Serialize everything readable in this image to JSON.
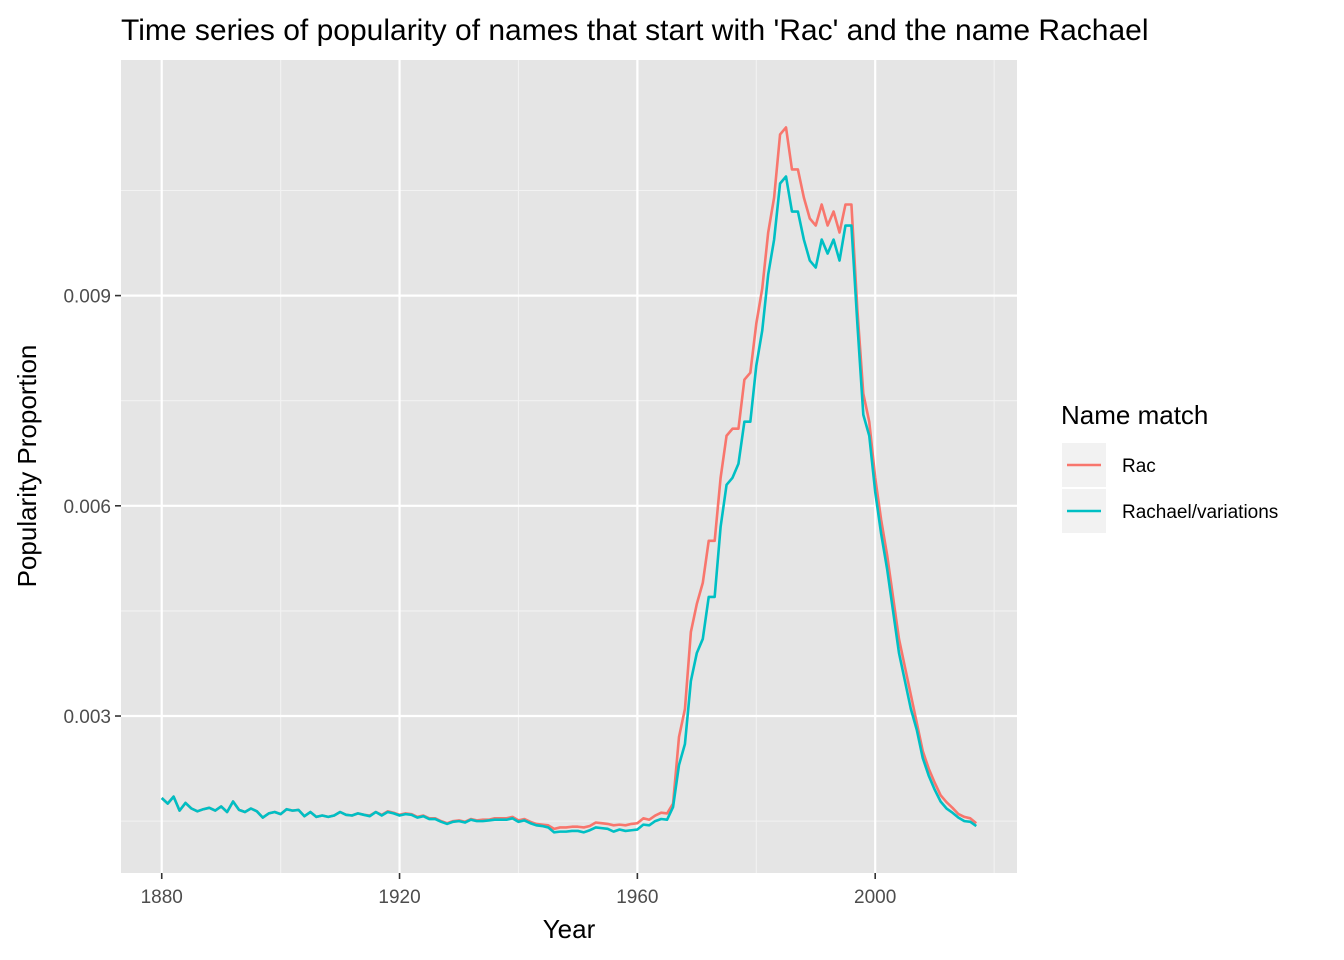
{
  "chart_data": {
    "type": "line",
    "title": "Time series of popularity of names that start with 'Rac' and the name Rachael",
    "xlabel": "Year",
    "ylabel": "Popularity Proportion",
    "xlim": [
      1873.15,
      2023.85
    ],
    "ylim": [
      0.0007596,
      0.0123624
    ],
    "x_ticks": [
      1880,
      1920,
      1960,
      2000
    ],
    "x_tick_labels": [
      "1880",
      "1920",
      "1960",
      "2000"
    ],
    "x_minor_ticks": [
      1900,
      1940,
      1980,
      2020
    ],
    "y_ticks": [
      0.003,
      0.006,
      0.009
    ],
    "y_tick_labels": [
      "0.003",
      "0.006",
      "0.009"
    ],
    "y_minor_ticks": [
      0.0015,
      0.0045,
      0.0075,
      0.0105
    ],
    "grid": true,
    "panel_background": "#e5e5e5",
    "legend": {
      "title": "Name match",
      "position": "right"
    },
    "series": [
      {
        "name": "Rac",
        "color": "#f8766d",
        "points": [
          [
            1880,
            0.00183
          ],
          [
            1881,
            0.00175
          ],
          [
            1882,
            0.00185
          ],
          [
            1883,
            0.00165
          ],
          [
            1884,
            0.00176
          ],
          [
            1885,
            0.00168
          ],
          [
            1886,
            0.00164
          ],
          [
            1887,
            0.00167
          ],
          [
            1888,
            0.00169
          ],
          [
            1889,
            0.00165
          ],
          [
            1890,
            0.00171
          ],
          [
            1891,
            0.00163
          ],
          [
            1892,
            0.00178
          ],
          [
            1893,
            0.00166
          ],
          [
            1894,
            0.00163
          ],
          [
            1895,
            0.00168
          ],
          [
            1896,
            0.00164
          ],
          [
            1897,
            0.00155
          ],
          [
            1898,
            0.00161
          ],
          [
            1899,
            0.00163
          ],
          [
            1900,
            0.0016
          ],
          [
            1901,
            0.00167
          ],
          [
            1902,
            0.00165
          ],
          [
            1903,
            0.00166
          ],
          [
            1904,
            0.00157
          ],
          [
            1905,
            0.00163
          ],
          [
            1906,
            0.00156
          ],
          [
            1907,
            0.00158
          ],
          [
            1908,
            0.00156
          ],
          [
            1909,
            0.00158
          ],
          [
            1910,
            0.00163
          ],
          [
            1911,
            0.00159
          ],
          [
            1912,
            0.00158
          ],
          [
            1913,
            0.00161
          ],
          [
            1914,
            0.00159
          ],
          [
            1915,
            0.00158
          ],
          [
            1916,
            0.00163
          ],
          [
            1917,
            0.00159
          ],
          [
            1918,
            0.00164
          ],
          [
            1919,
            0.00162
          ],
          [
            1920,
            0.00159
          ],
          [
            1921,
            0.00161
          ],
          [
            1922,
            0.0016
          ],
          [
            1923,
            0.00156
          ],
          [
            1924,
            0.00158
          ],
          [
            1925,
            0.00154
          ],
          [
            1926,
            0.00154
          ],
          [
            1927,
            0.0015
          ],
          [
            1928,
            0.00147
          ],
          [
            1929,
            0.0015
          ],
          [
            1930,
            0.00151
          ],
          [
            1931,
            0.00149
          ],
          [
            1932,
            0.00153
          ],
          [
            1933,
            0.00151
          ],
          [
            1934,
            0.00152
          ],
          [
            1935,
            0.00152
          ],
          [
            1936,
            0.00154
          ],
          [
            1937,
            0.00154
          ],
          [
            1938,
            0.00154
          ],
          [
            1939,
            0.00156
          ],
          [
            1940,
            0.00151
          ],
          [
            1941,
            0.00153
          ],
          [
            1942,
            0.00149
          ],
          [
            1943,
            0.00146
          ],
          [
            1944,
            0.00145
          ],
          [
            1945,
            0.00144
          ],
          [
            1946,
            0.00139
          ],
          [
            1947,
            0.00141
          ],
          [
            1948,
            0.00141
          ],
          [
            1949,
            0.00142
          ],
          [
            1950,
            0.00142
          ],
          [
            1951,
            0.00141
          ],
          [
            1952,
            0.00143
          ],
          [
            1953,
            0.00148
          ],
          [
            1954,
            0.00147
          ],
          [
            1955,
            0.00146
          ],
          [
            1956,
            0.00144
          ],
          [
            1957,
            0.00145
          ],
          [
            1958,
            0.00144
          ],
          [
            1959,
            0.00146
          ],
          [
            1960,
            0.00147
          ],
          [
            1961,
            0.00154
          ],
          [
            1962,
            0.00152
          ],
          [
            1963,
            0.00158
          ],
          [
            1964,
            0.00162
          ],
          [
            1965,
            0.00161
          ],
          [
            1966,
            0.00175
          ],
          [
            1967,
            0.0027
          ],
          [
            1968,
            0.0031
          ],
          [
            1969,
            0.0042
          ],
          [
            1970,
            0.0046
          ],
          [
            1971,
            0.0049
          ],
          [
            1972,
            0.0055
          ],
          [
            1973,
            0.0055
          ],
          [
            1974,
            0.0064
          ],
          [
            1975,
            0.007
          ],
          [
            1976,
            0.0071
          ],
          [
            1977,
            0.0071
          ],
          [
            1978,
            0.0078
          ],
          [
            1979,
            0.0079
          ],
          [
            1980,
            0.0086
          ],
          [
            1981,
            0.0091
          ],
          [
            1982,
            0.0099
          ],
          [
            1983,
            0.0104
          ],
          [
            1984,
            0.0113
          ],
          [
            1985,
            0.0114
          ],
          [
            1986,
            0.0108
          ],
          [
            1987,
            0.0108
          ],
          [
            1988,
            0.0104
          ],
          [
            1989,
            0.0101
          ],
          [
            1990,
            0.01
          ],
          [
            1991,
            0.0103
          ],
          [
            1992,
            0.01
          ],
          [
            1993,
            0.0102
          ],
          [
            1994,
            0.0099
          ],
          [
            1995,
            0.0103
          ],
          [
            1996,
            0.0103
          ],
          [
            1997,
            0.0088
          ],
          [
            1998,
            0.0076
          ],
          [
            1999,
            0.0072
          ],
          [
            2000,
            0.0064
          ],
          [
            2001,
            0.0058
          ],
          [
            2002,
            0.0053
          ],
          [
            2003,
            0.0047
          ],
          [
            2004,
            0.0041
          ],
          [
            2005,
            0.0037
          ],
          [
            2006,
            0.0033
          ],
          [
            2007,
            0.0029
          ],
          [
            2008,
            0.0025
          ],
          [
            2009,
            0.00225
          ],
          [
            2010,
            0.00205
          ],
          [
            2011,
            0.00187
          ],
          [
            2012,
            0.00177
          ],
          [
            2013,
            0.00169
          ],
          [
            2014,
            0.0016
          ],
          [
            2015,
            0.00156
          ],
          [
            2016,
            0.00154
          ],
          [
            2017,
            0.00147
          ]
        ]
      },
      {
        "name": "Rachael/variations",
        "color": "#00bfc4",
        "points": [
          [
            1880,
            0.00183
          ],
          [
            1881,
            0.00175
          ],
          [
            1882,
            0.00185
          ],
          [
            1883,
            0.00165
          ],
          [
            1884,
            0.00176
          ],
          [
            1885,
            0.00168
          ],
          [
            1886,
            0.00164
          ],
          [
            1887,
            0.00167
          ],
          [
            1888,
            0.00169
          ],
          [
            1889,
            0.00165
          ],
          [
            1890,
            0.00171
          ],
          [
            1891,
            0.00163
          ],
          [
            1892,
            0.00178
          ],
          [
            1893,
            0.00166
          ],
          [
            1894,
            0.00163
          ],
          [
            1895,
            0.00168
          ],
          [
            1896,
            0.00164
          ],
          [
            1897,
            0.00155
          ],
          [
            1898,
            0.00161
          ],
          [
            1899,
            0.00163
          ],
          [
            1900,
            0.0016
          ],
          [
            1901,
            0.00167
          ],
          [
            1902,
            0.00165
          ],
          [
            1903,
            0.00166
          ],
          [
            1904,
            0.00157
          ],
          [
            1905,
            0.00163
          ],
          [
            1906,
            0.00156
          ],
          [
            1907,
            0.00158
          ],
          [
            1908,
            0.00156
          ],
          [
            1909,
            0.00158
          ],
          [
            1910,
            0.00163
          ],
          [
            1911,
            0.00159
          ],
          [
            1912,
            0.00158
          ],
          [
            1913,
            0.00161
          ],
          [
            1914,
            0.00159
          ],
          [
            1915,
            0.00157
          ],
          [
            1916,
            0.00163
          ],
          [
            1917,
            0.00158
          ],
          [
            1918,
            0.00163
          ],
          [
            1919,
            0.00161
          ],
          [
            1920,
            0.00158
          ],
          [
            1921,
            0.0016
          ],
          [
            1922,
            0.00159
          ],
          [
            1923,
            0.00155
          ],
          [
            1924,
            0.00157
          ],
          [
            1925,
            0.00153
          ],
          [
            1926,
            0.00153
          ],
          [
            1927,
            0.00149
          ],
          [
            1928,
            0.00146
          ],
          [
            1929,
            0.00149
          ],
          [
            1930,
            0.0015
          ],
          [
            1931,
            0.00148
          ],
          [
            1932,
            0.00152
          ],
          [
            1933,
            0.0015
          ],
          [
            1934,
            0.0015
          ],
          [
            1935,
            0.00151
          ],
          [
            1936,
            0.00152
          ],
          [
            1937,
            0.00152
          ],
          [
            1938,
            0.00152
          ],
          [
            1939,
            0.00154
          ],
          [
            1940,
            0.00149
          ],
          [
            1941,
            0.00151
          ],
          [
            1942,
            0.00147
          ],
          [
            1943,
            0.00144
          ],
          [
            1944,
            0.00143
          ],
          [
            1945,
            0.00141
          ],
          [
            1946,
            0.00134
          ],
          [
            1947,
            0.00135
          ],
          [
            1948,
            0.00135
          ],
          [
            1949,
            0.00136
          ],
          [
            1950,
            0.00136
          ],
          [
            1951,
            0.00134
          ],
          [
            1952,
            0.00137
          ],
          [
            1953,
            0.00141
          ],
          [
            1954,
            0.0014
          ],
          [
            1955,
            0.00139
          ],
          [
            1956,
            0.00135
          ],
          [
            1957,
            0.00138
          ],
          [
            1958,
            0.00136
          ],
          [
            1959,
            0.00137
          ],
          [
            1960,
            0.00138
          ],
          [
            1961,
            0.00145
          ],
          [
            1962,
            0.00144
          ],
          [
            1963,
            0.0015
          ],
          [
            1964,
            0.00153
          ],
          [
            1965,
            0.00152
          ],
          [
            1966,
            0.0017
          ],
          [
            1967,
            0.0023
          ],
          [
            1968,
            0.0026
          ],
          [
            1969,
            0.0035
          ],
          [
            1970,
            0.0039
          ],
          [
            1971,
            0.0041
          ],
          [
            1972,
            0.0047
          ],
          [
            1973,
            0.0047
          ],
          [
            1974,
            0.0057
          ],
          [
            1975,
            0.0063
          ],
          [
            1976,
            0.0064
          ],
          [
            1977,
            0.0066
          ],
          [
            1978,
            0.0072
          ],
          [
            1979,
            0.0072
          ],
          [
            1980,
            0.008
          ],
          [
            1981,
            0.0085
          ],
          [
            1982,
            0.0093
          ],
          [
            1983,
            0.0098
          ],
          [
            1984,
            0.0106
          ],
          [
            1985,
            0.0107
          ],
          [
            1986,
            0.0102
          ],
          [
            1987,
            0.0102
          ],
          [
            1988,
            0.0098
          ],
          [
            1989,
            0.0095
          ],
          [
            1990,
            0.0094
          ],
          [
            1991,
            0.0098
          ],
          [
            1992,
            0.0096
          ],
          [
            1993,
            0.0098
          ],
          [
            1994,
            0.0095
          ],
          [
            1995,
            0.01
          ],
          [
            1996,
            0.01
          ],
          [
            1997,
            0.0086
          ],
          [
            1998,
            0.0073
          ],
          [
            1999,
            0.007
          ],
          [
            2000,
            0.0062
          ],
          [
            2001,
            0.0056
          ],
          [
            2002,
            0.0051
          ],
          [
            2003,
            0.0045
          ],
          [
            2004,
            0.0039
          ],
          [
            2005,
            0.0035
          ],
          [
            2006,
            0.0031
          ],
          [
            2007,
            0.0028
          ],
          [
            2008,
            0.0024
          ],
          [
            2009,
            0.00215
          ],
          [
            2010,
            0.00195
          ],
          [
            2011,
            0.00178
          ],
          [
            2012,
            0.00168
          ],
          [
            2013,
            0.00162
          ],
          [
            2014,
            0.00155
          ],
          [
            2015,
            0.0015
          ],
          [
            2016,
            0.00149
          ],
          [
            2017,
            0.00143
          ]
        ]
      }
    ]
  }
}
